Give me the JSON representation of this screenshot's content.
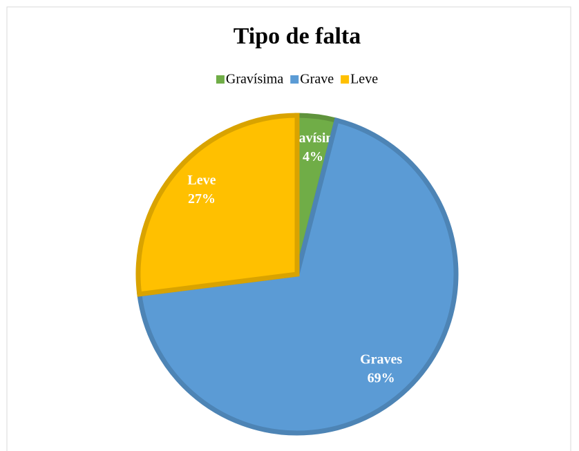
{
  "chart_data": {
    "type": "pie",
    "title": "Tipo de falta",
    "categories": [
      "Gravísima",
      "Grave",
      "Leve"
    ],
    "data_label_names": [
      "Gravísima",
      "Graves",
      "Leve"
    ],
    "values": [
      4,
      69,
      27
    ],
    "value_labels": [
      "4%",
      "69%",
      "27%"
    ],
    "colors": [
      "#70ad47",
      "#5b9bd5",
      "#ffc000"
    ],
    "legend": "top"
  }
}
